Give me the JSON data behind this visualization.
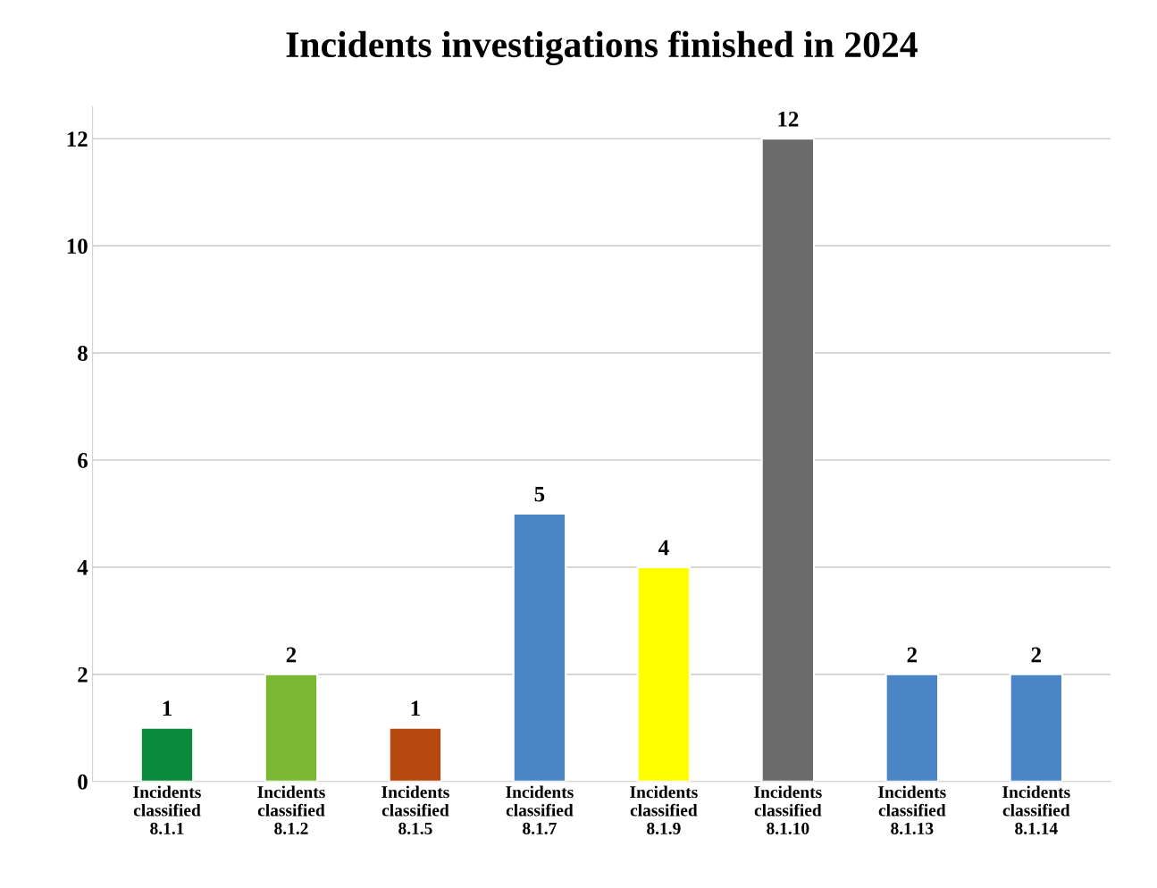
{
  "chart_data": {
    "type": "bar",
    "title": "Incidents investigations finished in 2024",
    "categories": [
      "Incidents\nclassified\n8.1.1",
      "Incidents\nclassified\n8.1.2",
      "Incidents\nclassified\n8.1.5",
      "Incidents\nclassified\n8.1.7",
      "Incidents\nclassified\n8.1.9",
      "Incidents\nclassified\n8.1.10",
      "Incidents\nclassified\n8.1.13",
      "Incidents\nclassified\n8.1.14"
    ],
    "values": [
      1,
      2,
      1,
      5,
      4,
      12,
      2,
      2
    ],
    "colors": [
      "#0a8a3a",
      "#7ab834",
      "#b5480c",
      "#4a86c5",
      "#ffff00",
      "#6b6b6b",
      "#4a86c5",
      "#4a86c5"
    ],
    "ylim": [
      0,
      12.6
    ],
    "yticks": [
      0,
      2,
      4,
      6,
      8,
      10,
      12
    ],
    "grid": "y",
    "data_labels": true
  }
}
